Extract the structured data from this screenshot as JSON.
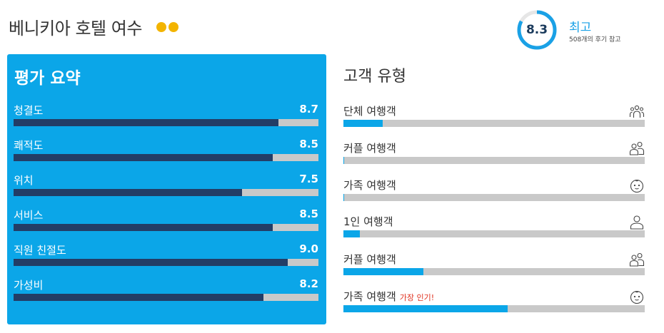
{
  "hotel": {
    "name": "베니키아 호텔 여수",
    "stars": 2,
    "star_color": "#f3b400"
  },
  "score": {
    "value": "8.3",
    "fraction": 0.83,
    "label": "최고",
    "reviews": "508개의 후기 참고",
    "ring_color": "#1aa1e6"
  },
  "summary": {
    "title": "평가 요약",
    "panel_color": "#0ba6e8",
    "bar_color": "#233d66",
    "ratings": [
      {
        "label": "청결도",
        "value": "8.7",
        "score": 8.7
      },
      {
        "label": "쾌적도",
        "value": "8.5",
        "score": 8.5
      },
      {
        "label": "위치",
        "value": "7.5",
        "score": 7.5
      },
      {
        "label": "서비스",
        "value": "8.5",
        "score": 8.5
      },
      {
        "label": "직원 친절도",
        "value": "9.0",
        "score": 9.0
      },
      {
        "label": "가성비",
        "value": "8.2",
        "score": 8.2
      }
    ]
  },
  "guests": {
    "title": "고객 유형",
    "bar_color": "#0ba6e8",
    "types": [
      {
        "label": "단체 여행객",
        "popular": "",
        "icon": "group-icon",
        "share": 0.13
      },
      {
        "label": "커플 여행객",
        "popular": "",
        "icon": "couple-icon",
        "share": 0.003
      },
      {
        "label": "가족 여행객",
        "popular": "",
        "icon": "baby-icon",
        "share": 0.003
      },
      {
        "label": "1인 여행객",
        "popular": "",
        "icon": "person-icon",
        "share": 0.055
      },
      {
        "label": "커플 여행객",
        "popular": "",
        "icon": "couple-icon",
        "share": 0.265
      },
      {
        "label": "가족 여행객",
        "popular": "가장 인기!",
        "icon": "baby-icon",
        "share": 0.545
      }
    ]
  }
}
